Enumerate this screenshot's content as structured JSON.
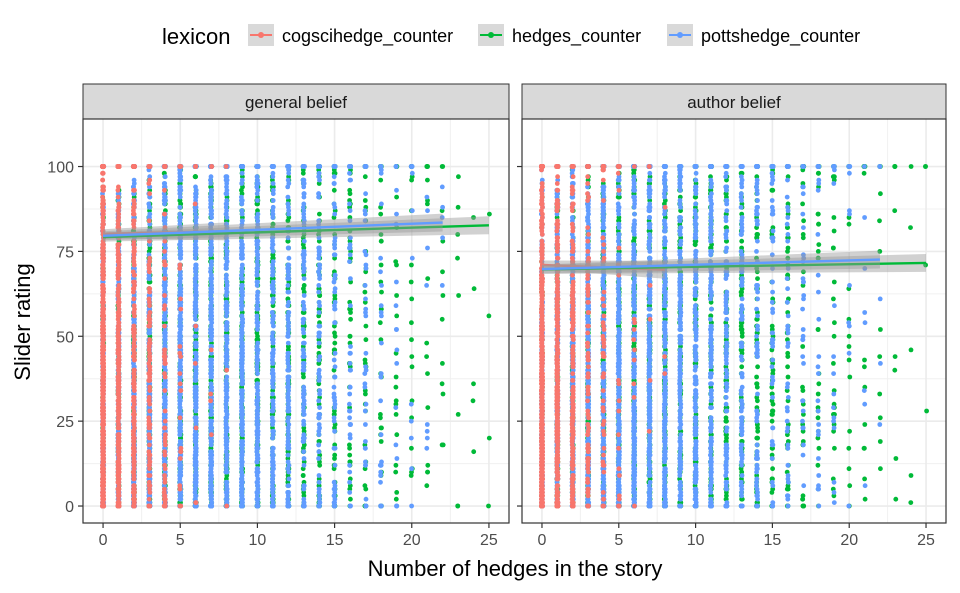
{
  "chart_data": {
    "type": "scatter",
    "xlabel": "Number of hedges in the story",
    "ylabel": "Slider rating",
    "xlim": [
      -1.3,
      26.3
    ],
    "ylim": [
      -5,
      114
    ],
    "x_ticks": [
      0,
      5,
      10,
      15,
      20,
      25
    ],
    "y_ticks": [
      0,
      25,
      50,
      75,
      100
    ],
    "x_tick_labels": [
      "0",
      "5",
      "10",
      "15",
      "20",
      "25"
    ],
    "y_tick_labels": [
      "0",
      "25",
      "50",
      "75",
      "100"
    ],
    "grid": true,
    "legend": {
      "title": "lexicon",
      "placement": "top",
      "entries": [
        {
          "name": "cogscihedge_counter",
          "color": "#F8766D"
        },
        {
          "name": "hedges_counter",
          "color": "#00BA38"
        },
        {
          "name": "pottshedge_counter",
          "color": "#619CFF"
        }
      ]
    },
    "panels": [
      {
        "title": "general belief",
        "series": [
          {
            "name": "cogscihedge_counter",
            "x_range": [
              0,
              8
            ],
            "points_per_x": [
              700,
              420,
              260,
              130,
              70,
              25,
              10,
              6,
              3
            ],
            "fit": {
              "x": [
                0,
                8
              ],
              "y": [
                80.2,
                80.9
              ]
            }
          },
          {
            "name": "hedges_counter",
            "x_range": [
              0,
              25
            ],
            "points_per_x": [
              120,
              160,
              200,
              230,
              260,
              260,
              250,
              240,
              220,
              200,
              180,
              160,
              140,
              120,
              100,
              80,
              60,
              45,
              35,
              28,
              22,
              16,
              12,
              8,
              5,
              4
            ],
            "fit": {
              "x": [
                0,
                25
              ],
              "y": [
                79.2,
                82.7
              ]
            }
          },
          {
            "name": "pottshedge_counter",
            "x_range": [
              0,
              22
            ],
            "points_per_x": [
              420,
              460,
              470,
              460,
              440,
              420,
              390,
              360,
              320,
              280,
              240,
              200,
              160,
              130,
              100,
              75,
              55,
              40,
              28,
              18,
              12,
              8,
              5
            ],
            "fit": {
              "x": [
                0,
                22
              ],
              "y": [
                79.6,
                83.5
              ]
            }
          }
        ]
      },
      {
        "title": "author belief",
        "series": [
          {
            "name": "cogscihedge_counter",
            "x_range": [
              0,
              8
            ],
            "points_per_x": [
              700,
              420,
              260,
              130,
              70,
              25,
              10,
              6,
              3
            ],
            "fit": {
              "x": [
                0,
                8
              ],
              "y": [
                71.0,
                69.6
              ]
            }
          },
          {
            "name": "hedges_counter",
            "x_range": [
              0,
              25
            ],
            "points_per_x": [
              120,
              160,
              200,
              230,
              260,
              260,
              250,
              240,
              220,
              200,
              180,
              160,
              140,
              120,
              100,
              80,
              60,
              45,
              35,
              28,
              22,
              16,
              12,
              8,
              5,
              4
            ],
            "fit": {
              "x": [
                0,
                25
              ],
              "y": [
                69.7,
                71.6
              ]
            }
          },
          {
            "name": "pottshedge_counter",
            "x_range": [
              0,
              22
            ],
            "points_per_x": [
              420,
              460,
              470,
              460,
              440,
              420,
              390,
              360,
              320,
              280,
              240,
              200,
              160,
              130,
              100,
              75,
              55,
              40,
              28,
              18,
              12,
              8,
              5
            ],
            "fit": {
              "x": [
                0,
                22
              ],
              "y": [
                69.8,
                72.6
              ]
            }
          }
        ]
      }
    ]
  }
}
